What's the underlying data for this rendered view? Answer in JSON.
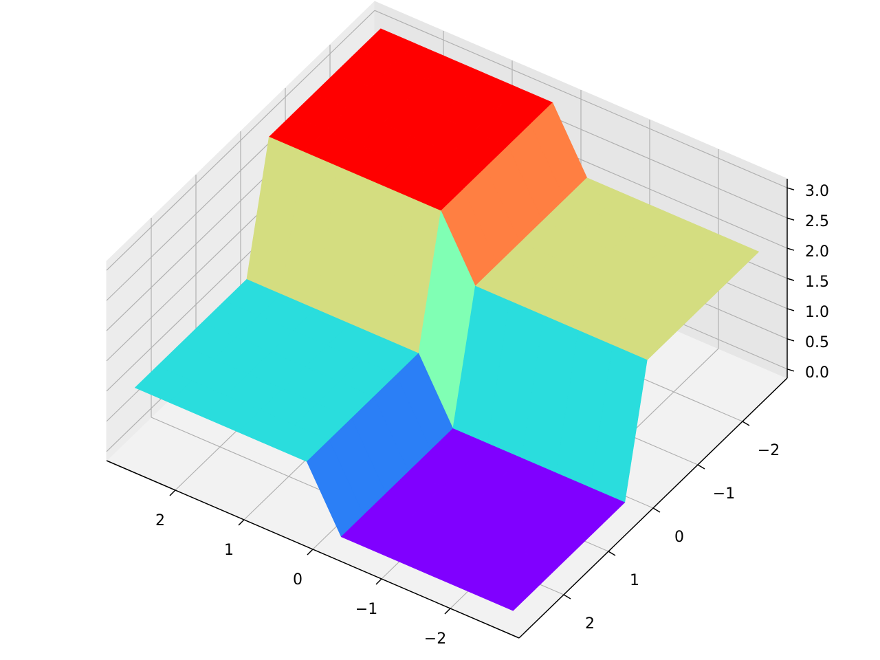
{
  "chart_data": {
    "type": "surface",
    "colormap": "rainbow",
    "x": [
      -2.75,
      -2.25,
      -1.75,
      -1.25,
      -0.75,
      -0.25,
      0.25,
      0.75,
      1.25,
      1.75,
      2.25,
      2.75
    ],
    "y": [
      -2.75,
      -2.25,
      -1.75,
      -1.25,
      -0.75,
      -0.25,
      0.25,
      0.75,
      1.25,
      1.75,
      2.25,
      2.75
    ],
    "z": [
      [
        2,
        2,
        2,
        2,
        2,
        2,
        3,
        3,
        3,
        3,
        3,
        3
      ],
      [
        2,
        2,
        2,
        2,
        2,
        2,
        3,
        3,
        3,
        3,
        3,
        3
      ],
      [
        2,
        2,
        2,
        2,
        2,
        2,
        3,
        3,
        3,
        3,
        3,
        3
      ],
      [
        2,
        2,
        2,
        2,
        2,
        2,
        3,
        3,
        3,
        3,
        3,
        3
      ],
      [
        2,
        2,
        2,
        2,
        2,
        2,
        3,
        3,
        3,
        3,
        3,
        3
      ],
      [
        2,
        2,
        2,
        2,
        2,
        2,
        3,
        3,
        3,
        3,
        3,
        3
      ],
      [
        0,
        0,
        0,
        0,
        0,
        0,
        1,
        1,
        1,
        1,
        1,
        1
      ],
      [
        0,
        0,
        0,
        0,
        0,
        0,
        1,
        1,
        1,
        1,
        1,
        1
      ],
      [
        0,
        0,
        0,
        0,
        0,
        0,
        1,
        1,
        1,
        1,
        1,
        1
      ],
      [
        0,
        0,
        0,
        0,
        0,
        0,
        1,
        1,
        1,
        1,
        1,
        1
      ],
      [
        0,
        0,
        0,
        0,
        0,
        0,
        1,
        1,
        1,
        1,
        1,
        1
      ],
      [
        0,
        0,
        0,
        0,
        0,
        0,
        1,
        1,
        1,
        1,
        1,
        1
      ]
    ],
    "xlim": [
      -3,
      3
    ],
    "ylim": [
      -3,
      3
    ],
    "zlim": [
      -0.15,
      3.15
    ],
    "xticks": [
      {
        "value": -2,
        "label": "−2"
      },
      {
        "value": -1,
        "label": "−1"
      },
      0,
      1,
      2
    ],
    "yticks": [
      {
        "value": -2,
        "label": "−2"
      },
      {
        "value": -1,
        "label": "−1"
      },
      0,
      1,
      2
    ],
    "zticks": [
      {
        "value": 0,
        "label": "0.0"
      },
      {
        "value": 0.5,
        "label": "0.5"
      },
      {
        "value": 1,
        "label": "1.0"
      },
      {
        "value": 1.5,
        "label": "1.5"
      },
      {
        "value": 2,
        "label": "2.0"
      },
      {
        "value": 2.5,
        "label": "2.5"
      },
      {
        "value": 3,
        "label": "3.0"
      }
    ],
    "grid": true
  }
}
